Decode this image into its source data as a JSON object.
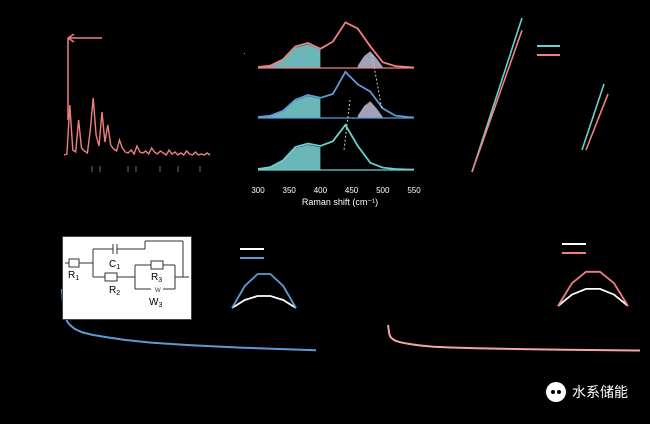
{
  "chart_data": [
    {
      "panel": "top-left",
      "type": "line",
      "title": "",
      "xlabel": "",
      "ylabel": "",
      "color": "#f08080",
      "x": [
        0,
        2,
        4,
        6,
        8,
        10,
        12,
        14,
        16,
        18,
        20,
        22,
        24,
        26,
        28,
        30,
        32,
        34,
        36,
        38,
        40,
        42,
        44,
        46,
        48,
        50,
        52,
        54,
        56,
        58,
        60,
        62,
        64,
        66,
        68,
        70,
        72,
        74,
        76,
        78,
        80,
        82,
        84,
        86,
        88,
        90,
        92,
        94,
        96,
        98,
        100
      ],
      "y": [
        5,
        6,
        55,
        10,
        8,
        40,
        12,
        9,
        7,
        30,
        62,
        25,
        14,
        48,
        18,
        35,
        15,
        11,
        9,
        20,
        12,
        8,
        7,
        10,
        6,
        14,
        8,
        7,
        9,
        6,
        12,
        8,
        6,
        9,
        7,
        5,
        10,
        6,
        8,
        5,
        7,
        5,
        9,
        6,
        5,
        8,
        5,
        6,
        5,
        7,
        5
      ],
      "ylim": [
        0,
        100
      ]
    },
    {
      "panel": "top-middle",
      "type": "line",
      "title": "",
      "xlabel": "Raman shift (cm⁻¹)",
      "ylabel": "",
      "x_ticks": [
        "300",
        "350",
        "400",
        "450",
        "500",
        "550"
      ],
      "xlim": [
        300,
        550
      ],
      "colors": {
        "top": "#f08080",
        "middle": "#5b9bd5",
        "bottom": "#6ccfcf",
        "fill": "#7ed6d6"
      },
      "series": [
        {
          "x": [
            300,
            320,
            340,
            360,
            380,
            400,
            420,
            440,
            460,
            480,
            500,
            520,
            540,
            550
          ],
          "values": [
            0.02,
            0.05,
            0.18,
            0.45,
            0.52,
            0.4,
            0.55,
            0.95,
            0.82,
            0.45,
            0.12,
            0.04,
            0.02,
            0.01
          ]
        },
        {
          "x": [
            300,
            320,
            340,
            360,
            380,
            400,
            420,
            440,
            460,
            480,
            500,
            520,
            540,
            550
          ],
          "values": [
            0.02,
            0.05,
            0.15,
            0.38,
            0.48,
            0.42,
            0.5,
            0.96,
            0.7,
            0.55,
            0.2,
            0.05,
            0.02,
            0.01
          ]
        },
        {
          "x": [
            300,
            320,
            340,
            360,
            380,
            400,
            420,
            440,
            460,
            480,
            500,
            520,
            540,
            550
          ],
          "values": [
            0.02,
            0.06,
            0.2,
            0.48,
            0.55,
            0.5,
            0.6,
            0.94,
            0.5,
            0.15,
            0.05,
            0.02,
            0.01,
            0.01
          ]
        }
      ]
    },
    {
      "panel": "top-right",
      "type": "line",
      "title": "",
      "xlabel": "",
      "ylabel": "",
      "series": [
        {
          "color": "#6ccfcf",
          "x": [
            0,
            1
          ],
          "values": [
            0,
            1
          ]
        },
        {
          "color": "#f08080",
          "x": [
            0,
            1
          ],
          "values": [
            0,
            0.92
          ]
        }
      ]
    },
    {
      "panel": "top-right-inset",
      "type": "line",
      "title": "",
      "xlabel": "",
      "ylabel": "",
      "series": [
        {
          "color": "#6ccfcf",
          "x": [
            0,
            1
          ],
          "values": [
            0,
            1
          ]
        },
        {
          "color": "#f08080",
          "x": [
            0,
            1
          ],
          "values": [
            0,
            0.85
          ]
        }
      ]
    },
    {
      "panel": "bottom-left",
      "type": "line",
      "title": "",
      "xlabel": "",
      "ylabel": "",
      "color": "#5b9bd5",
      "x": [
        0,
        0.5,
        1,
        2,
        3,
        5,
        8,
        12,
        18,
        25,
        35,
        50,
        70,
        100
      ],
      "values": [
        80,
        58,
        50,
        42,
        38,
        33,
        29,
        26,
        23,
        20,
        17,
        14,
        11,
        8
      ]
    },
    {
      "panel": "bottom-left-nyquist",
      "type": "line",
      "title": "",
      "xlabel": "",
      "ylabel": "",
      "series": [
        {
          "color": "#ffffff",
          "x": [
            0,
            0.2,
            0.4,
            0.6,
            0.8,
            1.0
          ],
          "values": [
            0,
            0.2,
            0.3,
            0.3,
            0.2,
            0
          ]
        },
        {
          "color": "#5b9bd5",
          "x": [
            0,
            0.2,
            0.4,
            0.6,
            0.8,
            1.0
          ],
          "values": [
            0,
            0.55,
            0.85,
            0.85,
            0.55,
            0
          ]
        }
      ]
    },
    {
      "panel": "bottom-right",
      "type": "line",
      "title": "",
      "xlabel": "",
      "ylabel": "",
      "color": "#f4a6a6",
      "x": [
        0,
        0.5,
        1,
        2,
        3,
        5,
        8,
        12,
        18,
        25,
        35,
        50,
        70,
        100
      ],
      "values": [
        40,
        28,
        24,
        21,
        19,
        17,
        15,
        13,
        11,
        10,
        9,
        8,
        7,
        6
      ]
    },
    {
      "panel": "bottom-right-nyquist",
      "type": "line",
      "title": "",
      "xlabel": "",
      "ylabel": "",
      "series": [
        {
          "color": "#ffffff",
          "x": [
            0,
            0.2,
            0.4,
            0.6,
            0.8,
            1.0
          ],
          "values": [
            0,
            0.3,
            0.45,
            0.45,
            0.3,
            0
          ]
        },
        {
          "color": "#f08080",
          "x": [
            0,
            0.2,
            0.4,
            0.6,
            0.8,
            1.0
          ],
          "values": [
            0,
            0.6,
            0.9,
            0.9,
            0.6,
            0
          ]
        }
      ]
    }
  ],
  "circuit": {
    "R1": "R",
    "R1_sub": "1",
    "C1": "C",
    "C1_sub": "1",
    "R2": "R",
    "R2_sub": "2",
    "R3": "R",
    "R3_sub": "3",
    "W3": "W",
    "W3_sub": "3",
    "W_symbol": "W"
  },
  "watermark": {
    "text": "水系储能",
    "icon": "wechat-icon"
  },
  "colors": {
    "pink": "#f08080",
    "blue": "#5b9bd5",
    "cyan": "#6ccfcf",
    "light_pink": "#f4a6a6",
    "white": "#ffffff"
  }
}
